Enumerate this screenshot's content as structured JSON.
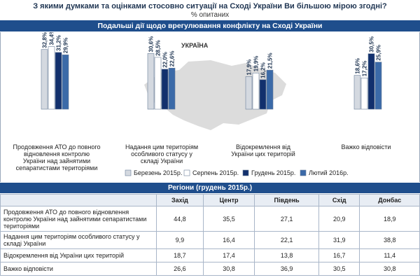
{
  "header": {
    "title": "З якими думками та оцінками стосовно ситуації на Сході України Ви більшою мірою згодні?",
    "subtitle": "% опитаних",
    "band_label": "Подальші дії щодо врегулювання конфлікту на Сході України"
  },
  "map": {
    "label": "УКРАЇНА",
    "fill": "#dcdcdc"
  },
  "chart_data": {
    "type": "bar",
    "categories": [
      "Продовження АТО до повного відновлення контролю України над зайнятими сепаратистами територіями",
      "Надання цим територіям особливого статусу у складі України",
      "Відокремлення від України цих територій",
      "Важко відповісти"
    ],
    "category_lines": [
      [
        "Продовження АТО до повного",
        "відновлення контролю",
        "України над зайнятими",
        "сепаратистами територіями"
      ],
      [
        "Надання цим територіям",
        "особливого статусу у",
        "складі України"
      ],
      [
        "Відокремлення від",
        "України цих територій"
      ],
      [
        "Важко відповісти"
      ]
    ],
    "series": [
      {
        "name": "Березень 2015р.",
        "color": "#d4d9e0",
        "values": [
          32.8,
          30.6,
          17.9,
          18.6
        ],
        "labels": [
          "32,8%",
          "30,6%",
          "17,9%",
          "18,6%"
        ]
      },
      {
        "name": "Серпень 2015р.",
        "color": "#ffffff",
        "values": [
          34.4,
          28.5,
          19.9,
          17.2
        ],
        "labels": [
          "34,4%",
          "28,5%",
          "19,9%",
          "17,2%"
        ]
      },
      {
        "name": "Грудень 2015р.",
        "color": "#12306d",
        "values": [
          31.2,
          22.0,
          16.2,
          30.5
        ],
        "labels": [
          "31,2%",
          "22,0%",
          "16,2%",
          "30,5%"
        ]
      },
      {
        "name": "Лютий 2016р.",
        "color": "#3b6aa8",
        "values": [
          29.9,
          22.6,
          21.5,
          25.9
        ],
        "labels": [
          "29,9%",
          "22,6%",
          "21,5%",
          "25,9%"
        ]
      }
    ],
    "legend_position": "bottom",
    "ylim": [
      0,
      40
    ]
  },
  "regions": {
    "title": "Регіони (грудень 2015р.)",
    "columns": [
      "Захід",
      "Центр",
      "Південь",
      "Схід",
      "Донбас"
    ],
    "rows": [
      {
        "label": "Продовження АТО до повного відновлення контролю України над зайнятими сепаратистами територіями",
        "values": [
          "44,8",
          "35,5",
          "27,1",
          "20,9",
          "18,9"
        ]
      },
      {
        "label": "Надання цим територіям особливого статусу у складі України",
        "values": [
          "9,9",
          "16,4",
          "22,1",
          "31,9",
          "38,8"
        ]
      },
      {
        "label": "Відокремлення від України цих територій",
        "values": [
          "18,7",
          "17,4",
          "13,8",
          "16,7",
          "11,4"
        ]
      },
      {
        "label": "Важко відповісти",
        "values": [
          "26,6",
          "30,8",
          "36,9",
          "30,5",
          "30,8"
        ]
      }
    ]
  }
}
